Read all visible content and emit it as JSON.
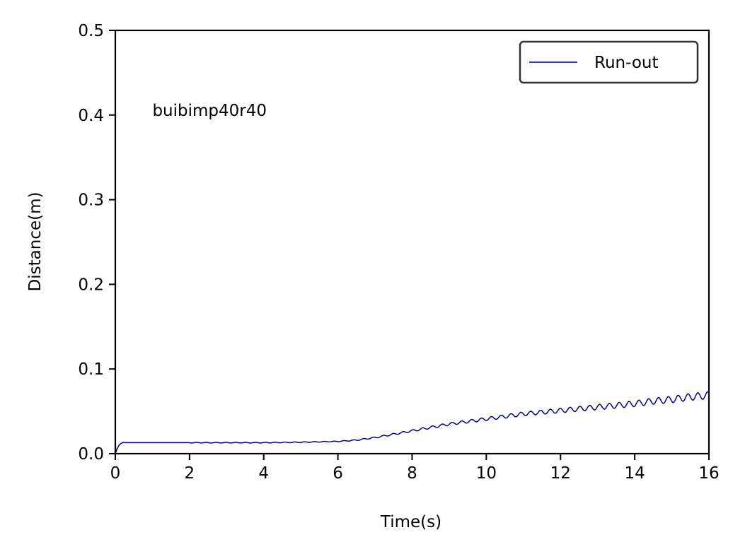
{
  "chart_data": {
    "type": "line",
    "title": "",
    "xlabel": "Time(s)",
    "ylabel": "Distance(m)",
    "xlim": [
      0,
      16
    ],
    "ylim": [
      0,
      0.5
    ],
    "xticks": [
      "0",
      "2",
      "4",
      "6",
      "8",
      "10",
      "12",
      "14",
      "16"
    ],
    "yticks": [
      "0.0",
      "0.1",
      "0.2",
      "0.3",
      "0.4",
      "0.5"
    ],
    "grid": false,
    "legend_position": "top-right",
    "annotation": {
      "text": "buibimp40r40",
      "x": 1.0,
      "y": 0.4
    },
    "series": [
      {
        "name": "Run-out",
        "color": "#00007f",
        "oscillation_amplitude": "small, growing with time (~0.001 m at 6 s to ~0.004 m at 16 s)",
        "x": [
          0,
          0.05,
          0.1,
          0.15,
          0.2,
          0.3,
          1,
          2,
          3,
          4,
          5,
          5.5,
          6,
          6.5,
          7,
          7.5,
          8,
          8.5,
          9,
          9.5,
          10,
          10.5,
          11,
          11.5,
          12,
          12.5,
          13,
          13.5,
          14,
          14.5,
          15,
          15.5,
          16
        ],
        "y": [
          0,
          0.006,
          0.01,
          0.012,
          0.013,
          0.013,
          0.013,
          0.013,
          0.013,
          0.013,
          0.0135,
          0.014,
          0.0145,
          0.016,
          0.019,
          0.023,
          0.027,
          0.031,
          0.035,
          0.038,
          0.041,
          0.044,
          0.047,
          0.049,
          0.051,
          0.053,
          0.055,
          0.057,
          0.059,
          0.062,
          0.064,
          0.067,
          0.069
        ]
      }
    ]
  }
}
